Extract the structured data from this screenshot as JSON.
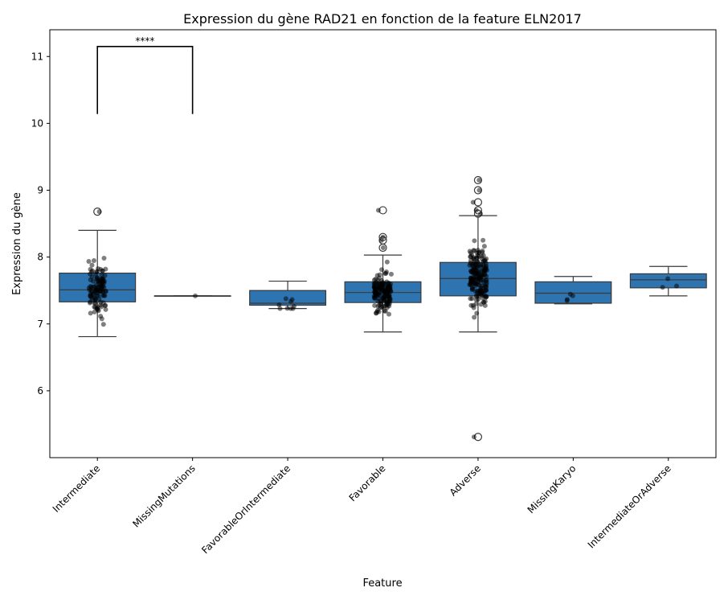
{
  "chart_data": {
    "type": "box",
    "title": "Expression du gène RAD21 en fonction de la feature ELN2017",
    "xlabel": "Feature",
    "ylabel": "Expression du gène",
    "ylim": [
      5.0,
      11.4
    ],
    "yticks": [
      6,
      7,
      8,
      9,
      10,
      11
    ],
    "box_color": "#2e74b0",
    "point_color": "#000000",
    "grid": false,
    "categories": [
      "Intermediate",
      "MissingMutations",
      "FavorableOrIntermediate",
      "Favorable",
      "Adverse",
      "MissingKaryo",
      "IntermediateOrAdverse"
    ],
    "boxes": [
      {
        "category": "Intermediate",
        "whisker_low": 6.81,
        "q1": 7.33,
        "median": 7.51,
        "q3": 7.76,
        "whisker_high": 8.4,
        "outliers": [
          8.68
        ],
        "n_points": 110
      },
      {
        "category": "MissingMutations",
        "whisker_low": 7.42,
        "q1": 7.42,
        "median": 7.42,
        "q3": 7.42,
        "whisker_high": 7.42,
        "outliers": [],
        "n_points": 1
      },
      {
        "category": "FavorableOrIntermediate",
        "whisker_low": 7.23,
        "q1": 7.28,
        "median": 7.31,
        "q3": 7.5,
        "whisker_high": 7.64,
        "outliers": [],
        "n_points": 9
      },
      {
        "category": "Favorable",
        "whisker_low": 6.88,
        "q1": 7.32,
        "median": 7.47,
        "q3": 7.63,
        "whisker_high": 8.03,
        "outliers": [
          8.14,
          8.25,
          8.3,
          8.7
        ],
        "n_points": 150
      },
      {
        "category": "Adverse",
        "whisker_low": 6.88,
        "q1": 7.42,
        "median": 7.68,
        "q3": 7.92,
        "whisker_high": 8.62,
        "outliers": [
          5.31,
          8.65,
          8.7,
          8.82,
          9.0,
          9.15
        ],
        "n_points": 180
      },
      {
        "category": "MissingKaryo",
        "whisker_low": 7.3,
        "q1": 7.31,
        "median": 7.46,
        "q3": 7.63,
        "whisker_high": 7.71,
        "outliers": [],
        "n_points": 4
      },
      {
        "category": "IntermediateOrAdverse",
        "whisker_low": 7.42,
        "q1": 7.54,
        "median": 7.66,
        "q3": 7.75,
        "whisker_high": 7.86,
        "outliers": [],
        "n_points": 3
      }
    ],
    "annotations": [
      {
        "from": "Intermediate",
        "to": "MissingMutations",
        "text": "****",
        "y_low": 10.14,
        "y_high": 11.15
      }
    ]
  }
}
